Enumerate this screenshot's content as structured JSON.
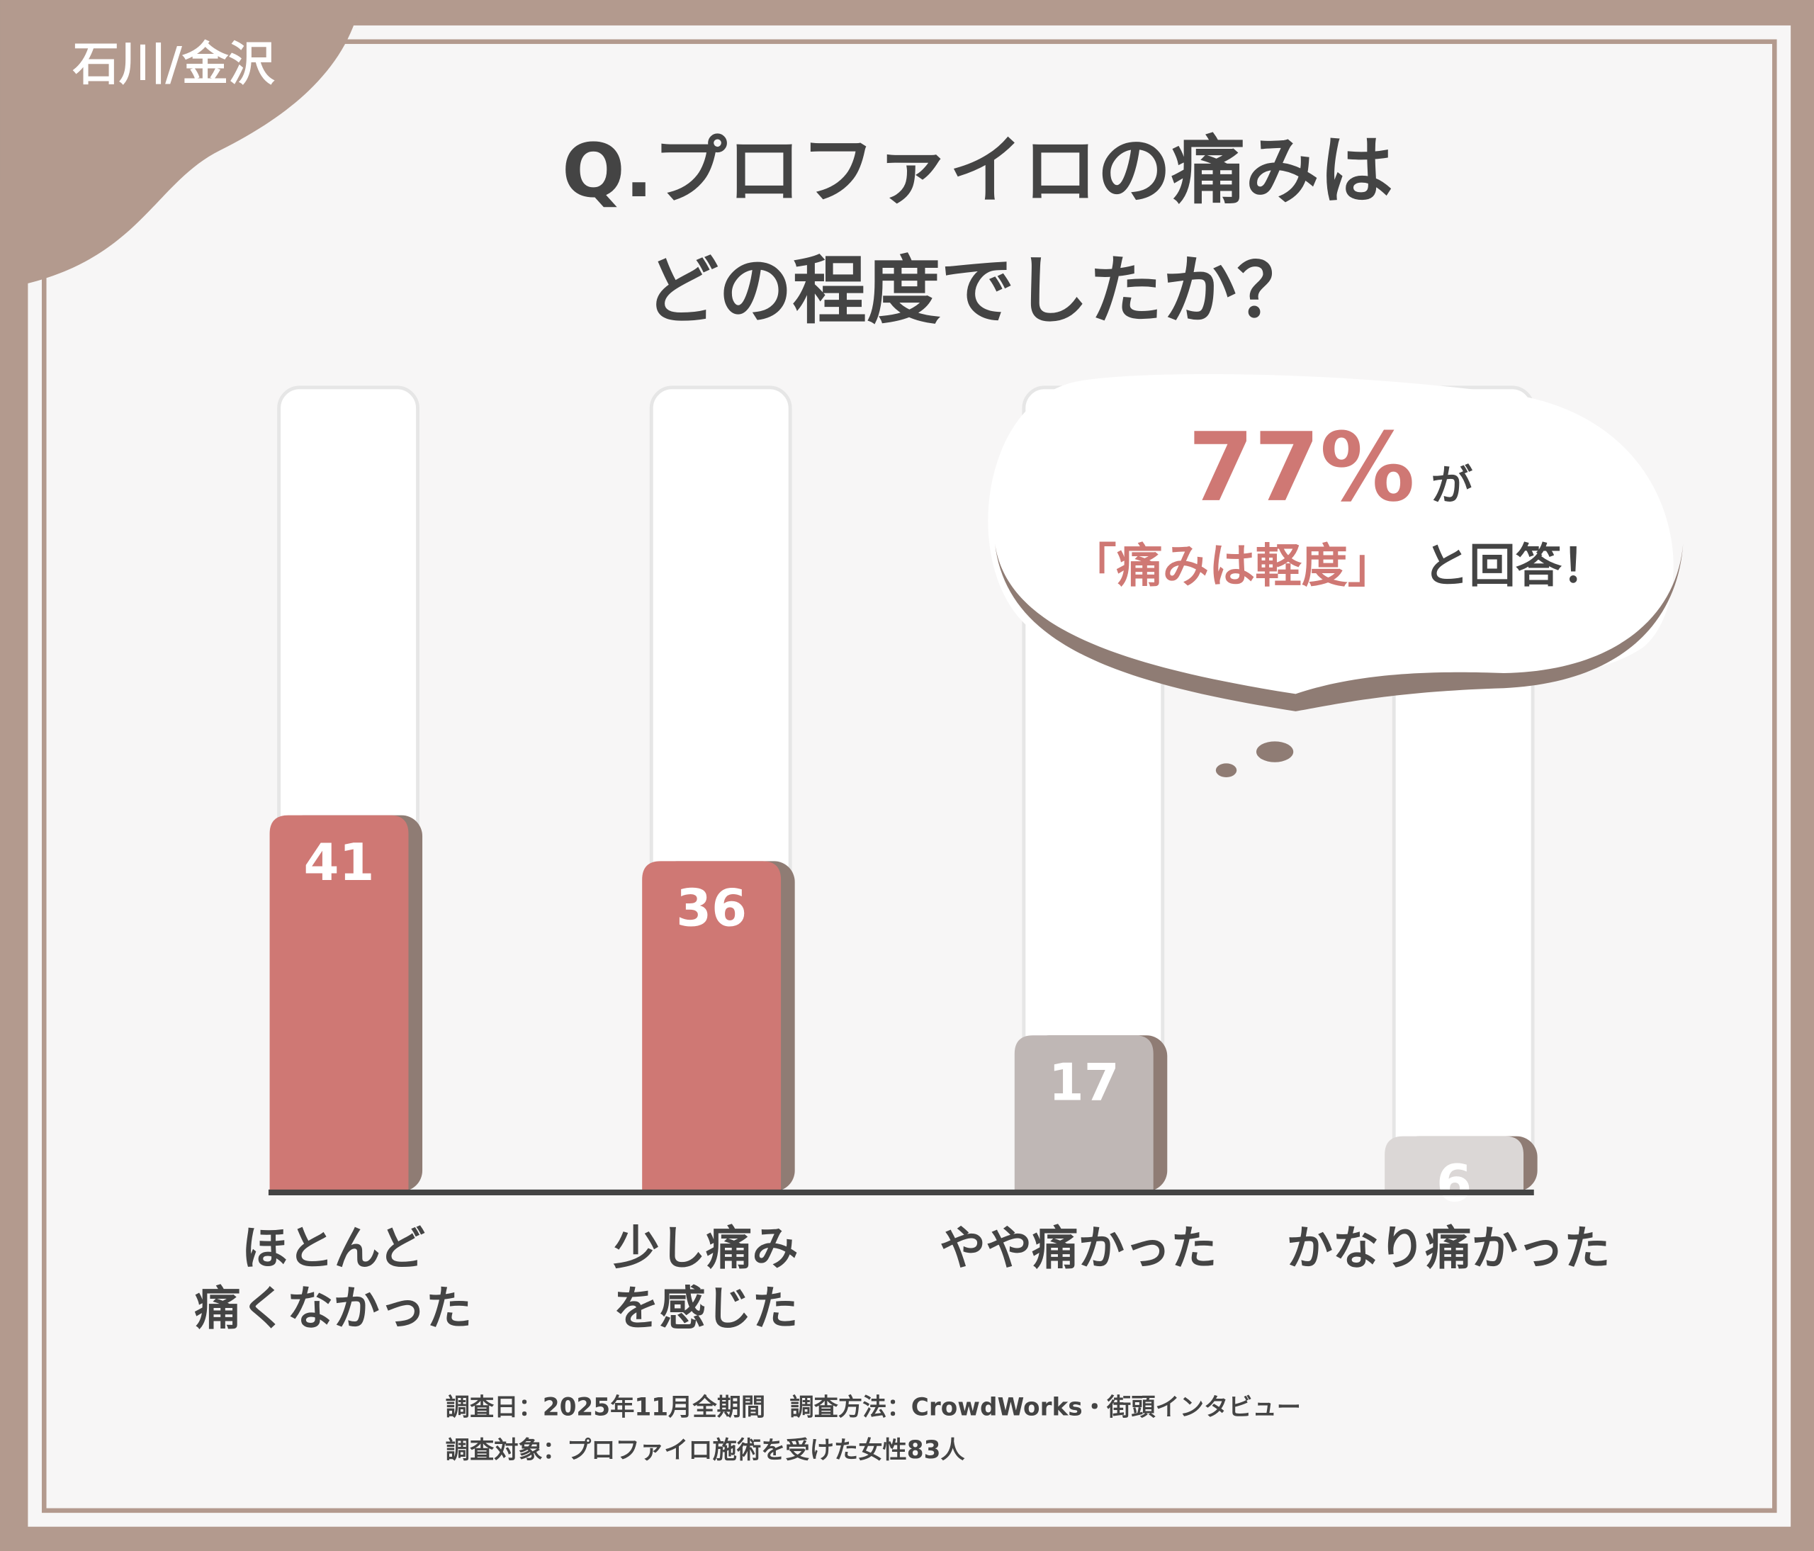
{
  "chart_data": {
    "type": "bar",
    "tag": "石川/金沢",
    "title_lines": [
      "Q.プロファイロの痛みは",
      "どの程度でしたか？"
    ],
    "categories": [
      "ほとんど\n痛くなかった",
      "少し痛み\nを感じた",
      "やや痛かった",
      "かなり痛かった"
    ],
    "values": [
      41,
      36,
      17,
      6
    ],
    "colors": [
      "#cf7874",
      "#cf7874",
      "#bfb7b5",
      "#dbd7d6"
    ],
    "callout": {
      "number": "77%",
      "number_suffix": "が",
      "highlight": "「痛みは軽度」",
      "rest": "と回答！"
    },
    "notes": [
      "調査日：2025年11月全期間　調査方法：CrowdWorks・街頭インタビュー",
      "調査対象：プロファイロ施術を受けた女性83人"
    ]
  }
}
